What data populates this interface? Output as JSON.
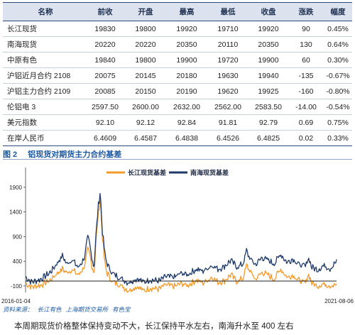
{
  "table": {
    "headers": [
      "名称",
      "前收",
      "开盘",
      "最高",
      "最低",
      "收盘",
      "涨跌",
      "幅度"
    ],
    "rows": [
      [
        "长江现货",
        "19830",
        "19800",
        "19920",
        "19710",
        "19920",
        "90",
        "0.45%"
      ],
      [
        "南海现货",
        "20220",
        "20220",
        "20350",
        "20110",
        "20350",
        "130",
        "0.64%"
      ],
      [
        "中原有色",
        "19840",
        "19800",
        "19900",
        "19720",
        "19900",
        "60",
        "0.30%"
      ],
      [
        "沪铝近月合约 2108",
        "20075",
        "20145",
        "20180",
        "19630",
        "19940",
        "-135",
        "-0.67%"
      ],
      [
        "沪铝主力合约 2109",
        "20085",
        "20150",
        "20190",
        "19620",
        "19925",
        "-160",
        "-0.80%"
      ],
      [
        "伦铝电 3",
        "2597.50",
        "2600.00",
        "2632.00",
        "2562.00",
        "2583.50",
        "-14.00",
        "-0.54%"
      ],
      [
        "美元指数",
        "92.10",
        "92.12",
        "92.84",
        "91.81",
        "92.79",
        "0.69",
        "0.75%"
      ],
      [
        "在岸人民币",
        "6.4609",
        "6.4587",
        "6.4838",
        "6.4526",
        "6.4825",
        "0.02",
        "0.33%"
      ]
    ]
  },
  "figure": {
    "number": "图 2",
    "title": "铝现货对期货主力合约基差"
  },
  "chart_data": {
    "type": "line",
    "x_start_label": "2016-01-04",
    "x_end_label": "2021-08-06",
    "y_ticks": [
      -100,
      400,
      900,
      1400,
      1900
    ],
    "y_tick_labels": [
      "-100",
      "400",
      "900",
      "1400",
      "1900"
    ],
    "ylim": [
      -230,
      2300
    ],
    "grid": false,
    "legend_position": "top-center",
    "zero_line": true,
    "series": [
      {
        "name": "长江现货基差",
        "color": "#f39a2c",
        "keypoints": [
          [
            0,
            -50
          ],
          [
            2,
            -120
          ],
          [
            5,
            -80
          ],
          [
            8,
            20
          ],
          [
            10,
            150
          ],
          [
            12,
            250
          ],
          [
            13,
            170
          ],
          [
            15,
            230
          ],
          [
            17,
            120
          ],
          [
            19,
            300
          ],
          [
            20,
            650
          ],
          [
            21,
            420
          ],
          [
            22,
            150
          ],
          [
            23,
            1100
          ],
          [
            24,
            1700
          ],
          [
            24.6,
            1000
          ],
          [
            25.5,
            320
          ],
          [
            26.5,
            120
          ],
          [
            28,
            -20
          ],
          [
            30,
            -60
          ],
          [
            33,
            -190
          ],
          [
            36,
            -110
          ],
          [
            38,
            -200
          ],
          [
            40,
            -140
          ],
          [
            43,
            -160
          ],
          [
            45,
            -80
          ],
          [
            48,
            -110
          ],
          [
            50,
            -50
          ],
          [
            52,
            -90
          ],
          [
            55,
            20
          ],
          [
            57,
            -40
          ],
          [
            60,
            80
          ],
          [
            62,
            -30
          ],
          [
            64,
            10
          ],
          [
            66,
            130
          ],
          [
            68,
            -10
          ],
          [
            70,
            60
          ],
          [
            71,
            320
          ],
          [
            72,
            220
          ],
          [
            74,
            30
          ],
          [
            76,
            180
          ],
          [
            78,
            120
          ],
          [
            80,
            40
          ],
          [
            82,
            250
          ],
          [
            84,
            80
          ],
          [
            86,
            120
          ],
          [
            88,
            10
          ],
          [
            90,
            -40
          ],
          [
            91,
            150
          ],
          [
            92,
            -40
          ],
          [
            94,
            -100
          ],
          [
            96,
            -60
          ],
          [
            98,
            -90
          ],
          [
            100,
            -80
          ]
        ]
      },
      {
        "name": "南海现货基差",
        "color": "#1f3a68",
        "keypoints": [
          [
            0,
            80
          ],
          [
            2,
            -20
          ],
          [
            5,
            40
          ],
          [
            8,
            180
          ],
          [
            10,
            350
          ],
          [
            12,
            520
          ],
          [
            13,
            350
          ],
          [
            15,
            430
          ],
          [
            17,
            270
          ],
          [
            19,
            480
          ],
          [
            20,
            900
          ],
          [
            21,
            600
          ],
          [
            22,
            280
          ],
          [
            23,
            1250
          ],
          [
            24,
            1850
          ],
          [
            24.6,
            1100
          ],
          [
            25.5,
            520
          ],
          [
            26.5,
            300
          ],
          [
            28,
            150
          ],
          [
            30,
            80
          ],
          [
            33,
            -30
          ],
          [
            36,
            50
          ],
          [
            38,
            -20
          ],
          [
            40,
            30
          ],
          [
            43,
            0
          ],
          [
            45,
            90
          ],
          [
            48,
            80
          ],
          [
            50,
            160
          ],
          [
            52,
            130
          ],
          [
            55,
            240
          ],
          [
            57,
            200
          ],
          [
            60,
            320
          ],
          [
            62,
            240
          ],
          [
            64,
            300
          ],
          [
            66,
            420
          ],
          [
            68,
            280
          ],
          [
            70,
            350
          ],
          [
            71,
            620
          ],
          [
            72,
            470
          ],
          [
            74,
            330
          ],
          [
            76,
            480
          ],
          [
            78,
            420
          ],
          [
            80,
            350
          ],
          [
            82,
            550
          ],
          [
            84,
            380
          ],
          [
            86,
            450
          ],
          [
            88,
            330
          ],
          [
            90,
            300
          ],
          [
            91,
            480
          ],
          [
            92,
            280
          ],
          [
            94,
            230
          ],
          [
            96,
            320
          ],
          [
            98,
            250
          ],
          [
            100,
            400
          ]
        ]
      }
    ]
  },
  "source": {
    "label": "资料来源：",
    "items": [
      "长江有色",
      "上海期货交易所",
      "有色宝"
    ]
  },
  "footer_note": "本周期现货价格整体保持变动不大，长江保持平水左右，南海升水至 400 左右"
}
